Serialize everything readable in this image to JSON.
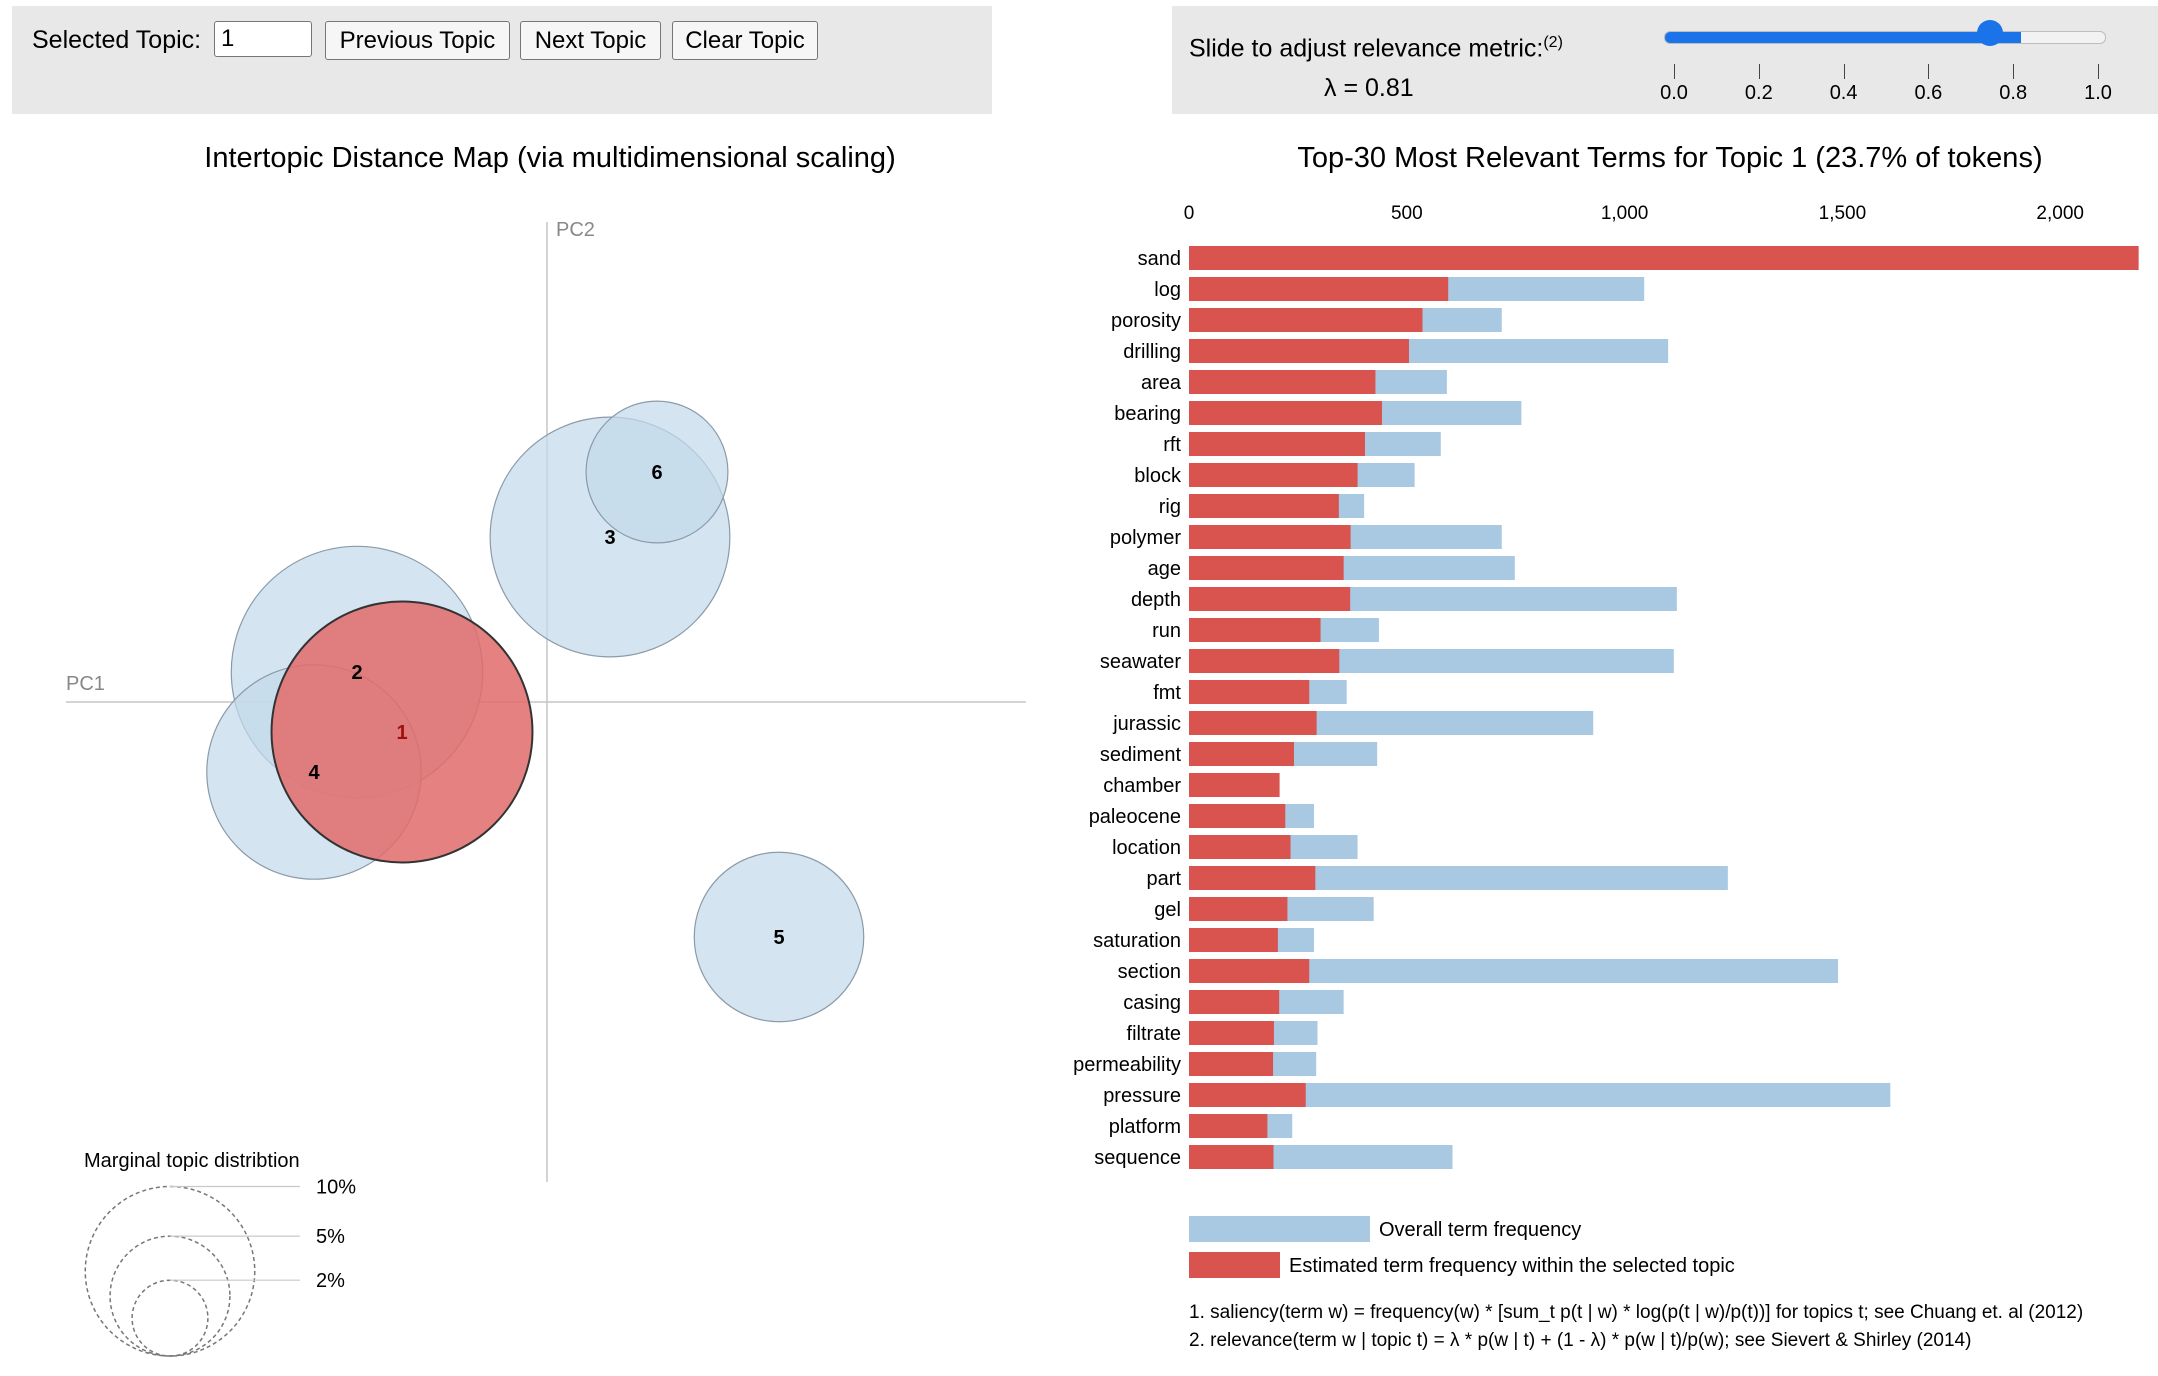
{
  "controls": {
    "selected_topic_label": "Selected Topic:",
    "selected_topic_value": "1",
    "previous_label": "Previous Topic",
    "next_label": "Next Topic",
    "clear_label": "Clear Topic"
  },
  "slider": {
    "label": "Slide to adjust relevance metric:",
    "footnote_ref": "(2)",
    "lambda_text": "λ = 0.81",
    "lambda": 0.81,
    "ticks": [
      "0.0",
      "0.2",
      "0.4",
      "0.6",
      "0.8",
      "1.0"
    ],
    "color": "#1a73e8"
  },
  "chart_data": [
    {
      "type": "scatter",
      "title": "Intertopic Distance Map (via multidimensional scaling)",
      "xlabel": "PC1",
      "ylabel": "PC2",
      "selected_color": "#e26b6b",
      "default_color": "#c3d9ea",
      "topics": [
        {
          "label": "1",
          "x": -0.145,
          "y": -0.03,
          "size": 23.7,
          "selected": true
        },
        {
          "label": "2",
          "x": -0.19,
          "y": 0.03,
          "size": 22.0,
          "selected": false
        },
        {
          "label": "3",
          "x": 0.063,
          "y": 0.165,
          "size": 20.0,
          "selected": false
        },
        {
          "label": "4",
          "x": -0.233,
          "y": -0.07,
          "size": 16.0,
          "selected": false
        },
        {
          "label": "5",
          "x": 0.232,
          "y": -0.235,
          "size": 10.0,
          "selected": false
        },
        {
          "label": "6",
          "x": 0.11,
          "y": 0.23,
          "size": 7.0,
          "selected": false
        }
      ],
      "legend": {
        "title": "Marginal topic distribtion",
        "sizes": [
          "2%",
          "5%",
          "10%"
        ]
      }
    },
    {
      "type": "bar",
      "title": "Top-30 Most Relevant Terms for Topic 1 (23.7% of tokens)",
      "x_ticks": [
        "0",
        "500",
        "1,000",
        "1,500",
        "2,000"
      ],
      "x_tick_values": [
        0,
        500,
        1000,
        1500,
        2000
      ],
      "xlim": [
        0,
        2180
      ],
      "overall_color": "#a9c8e2",
      "topic_color": "#d9534f",
      "terms": [
        "sand",
        "log",
        "porosity",
        "drilling",
        "area",
        "bearing",
        "rft",
        "block",
        "rig",
        "polymer",
        "age",
        "depth",
        "run",
        "seawater",
        "fmt",
        "jurassic",
        "sediment",
        "chamber",
        "paleocene",
        "location",
        "part",
        "gel",
        "saturation",
        "section",
        "casing",
        "filtrate",
        "permeability",
        "pressure",
        "platform",
        "sequence"
      ],
      "overall": [
        2180,
        1045,
        718,
        1100,
        592,
        763,
        578,
        518,
        402,
        718,
        748,
        1120,
        436,
        1113,
        362,
        928,
        432,
        205,
        287,
        387,
        1237,
        424,
        287,
        1490,
        355,
        295,
        292,
        1610,
        237,
        605
      ],
      "estimated": [
        2180,
        595,
        536,
        505,
        428,
        443,
        404,
        387,
        344,
        371,
        355,
        370,
        302,
        345,
        276,
        293,
        241,
        208,
        221,
        233,
        290,
        226,
        204,
        276,
        207,
        195,
        193,
        268,
        180,
        194
      ],
      "legend": {
        "overall": "Overall term frequency",
        "estimated": "Estimated term frequency within the selected topic"
      }
    }
  ],
  "footnotes": {
    "saliency": "1. saliency(term w) = frequency(w) * [sum_t p(t | w) * log(p(t | w)/p(t))] for topics t; see Chuang et. al (2012)",
    "relevance": "2. relevance(term w | topic t) = λ * p(w | t) + (1 - λ) * p(w | t)/p(w); see Sievert & Shirley (2014)"
  }
}
